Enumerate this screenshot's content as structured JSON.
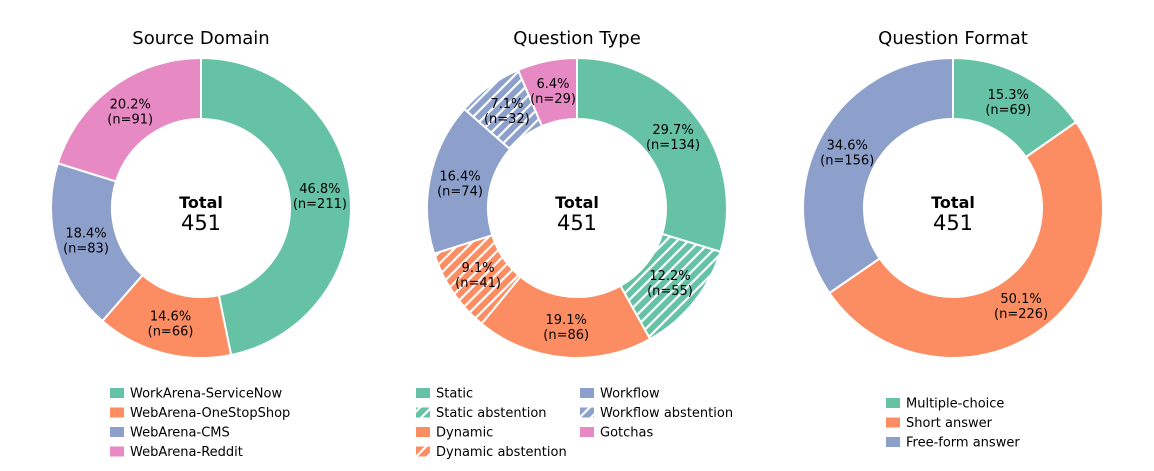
{
  "colors": {
    "green": "#66c2a5",
    "orange": "#fc8d62",
    "blue": "#8da0cb",
    "pink": "#e78ac3",
    "border": "#ffffff"
  },
  "chart_data": [
    {
      "type": "pie",
      "title": "Source Domain",
      "center": {
        "label": "Total",
        "value": "451"
      },
      "slices": [
        {
          "name": "WorkArena-ServiceNow",
          "count": 211,
          "percent": "46.8%",
          "n_label": "(n=211)",
          "color": "#66c2a5",
          "hatched": false
        },
        {
          "name": "WebArena-OneStopShop",
          "count": 66,
          "percent": "14.6%",
          "n_label": "(n=66)",
          "color": "#fc8d62",
          "hatched": false
        },
        {
          "name": "WebArena-CMS",
          "count": 83,
          "percent": "18.4%",
          "n_label": "(n=83)",
          "color": "#8da0cb",
          "hatched": false
        },
        {
          "name": "WebArena-Reddit",
          "count": 91,
          "percent": "20.2%",
          "n_label": "(n=91)",
          "color": "#e78ac3",
          "hatched": false
        }
      ],
      "legend": [
        {
          "label": "WorkArena-ServiceNow",
          "color": "#66c2a5",
          "hatched": false
        },
        {
          "label": "WebArena-OneStopShop",
          "color": "#fc8d62",
          "hatched": false
        },
        {
          "label": "WebArena-CMS",
          "color": "#8da0cb",
          "hatched": false
        },
        {
          "label": "WebArena-Reddit",
          "color": "#e78ac3",
          "hatched": false
        }
      ]
    },
    {
      "type": "pie",
      "title": "Question Type",
      "center": {
        "label": "Total",
        "value": "451"
      },
      "slices": [
        {
          "name": "Static",
          "count": 134,
          "percent": "29.7%",
          "n_label": "(n=134)",
          "color": "#66c2a5",
          "hatched": false
        },
        {
          "name": "Static abstention",
          "count": 55,
          "percent": "12.2%",
          "n_label": "(n=55)",
          "color": "#66c2a5",
          "hatched": true
        },
        {
          "name": "Dynamic",
          "count": 86,
          "percent": "19.1%",
          "n_label": "(n=86)",
          "color": "#fc8d62",
          "hatched": false
        },
        {
          "name": "Dynamic abstention",
          "count": 41,
          "percent": "9.1%",
          "n_label": "(n=41)",
          "color": "#fc8d62",
          "hatched": true
        },
        {
          "name": "Workflow",
          "count": 74,
          "percent": "16.4%",
          "n_label": "(n=74)",
          "color": "#8da0cb",
          "hatched": false
        },
        {
          "name": "Workflow abstention",
          "count": 32,
          "percent": "7.1%",
          "n_label": "(n=32)",
          "color": "#8da0cb",
          "hatched": true
        },
        {
          "name": "Gotchas",
          "count": 29,
          "percent": "6.4%",
          "n_label": "(n=29)",
          "color": "#e78ac3",
          "hatched": false
        }
      ],
      "legend": [
        {
          "label": "Static",
          "color": "#66c2a5",
          "hatched": false
        },
        {
          "label": "Static abstention",
          "color": "#66c2a5",
          "hatched": true
        },
        {
          "label": "Dynamic",
          "color": "#fc8d62",
          "hatched": false
        },
        {
          "label": "Dynamic abstention",
          "color": "#fc8d62",
          "hatched": true
        },
        {
          "label": "Workflow",
          "color": "#8da0cb",
          "hatched": false
        },
        {
          "label": "Workflow abstention",
          "color": "#8da0cb",
          "hatched": true
        },
        {
          "label": "Gotchas",
          "color": "#e78ac3",
          "hatched": false
        }
      ]
    },
    {
      "type": "pie",
      "title": "Question Format",
      "center": {
        "label": "Total",
        "value": "451"
      },
      "slices": [
        {
          "name": "Multiple-choice",
          "count": 69,
          "percent": "15.3%",
          "n_label": "(n=69)",
          "color": "#66c2a5",
          "hatched": false
        },
        {
          "name": "Short answer",
          "count": 226,
          "percent": "50.1%",
          "n_label": "(n=226)",
          "color": "#fc8d62",
          "hatched": false
        },
        {
          "name": "Free-form answer",
          "count": 156,
          "percent": "34.6%",
          "n_label": "(n=156)",
          "color": "#8da0cb",
          "hatched": false
        }
      ],
      "legend": [
        {
          "label": "Multiple-choice",
          "color": "#66c2a5",
          "hatched": false
        },
        {
          "label": "Short answer",
          "color": "#fc8d62",
          "hatched": false
        },
        {
          "label": "Free-form answer",
          "color": "#8da0cb",
          "hatched": false
        }
      ]
    }
  ]
}
